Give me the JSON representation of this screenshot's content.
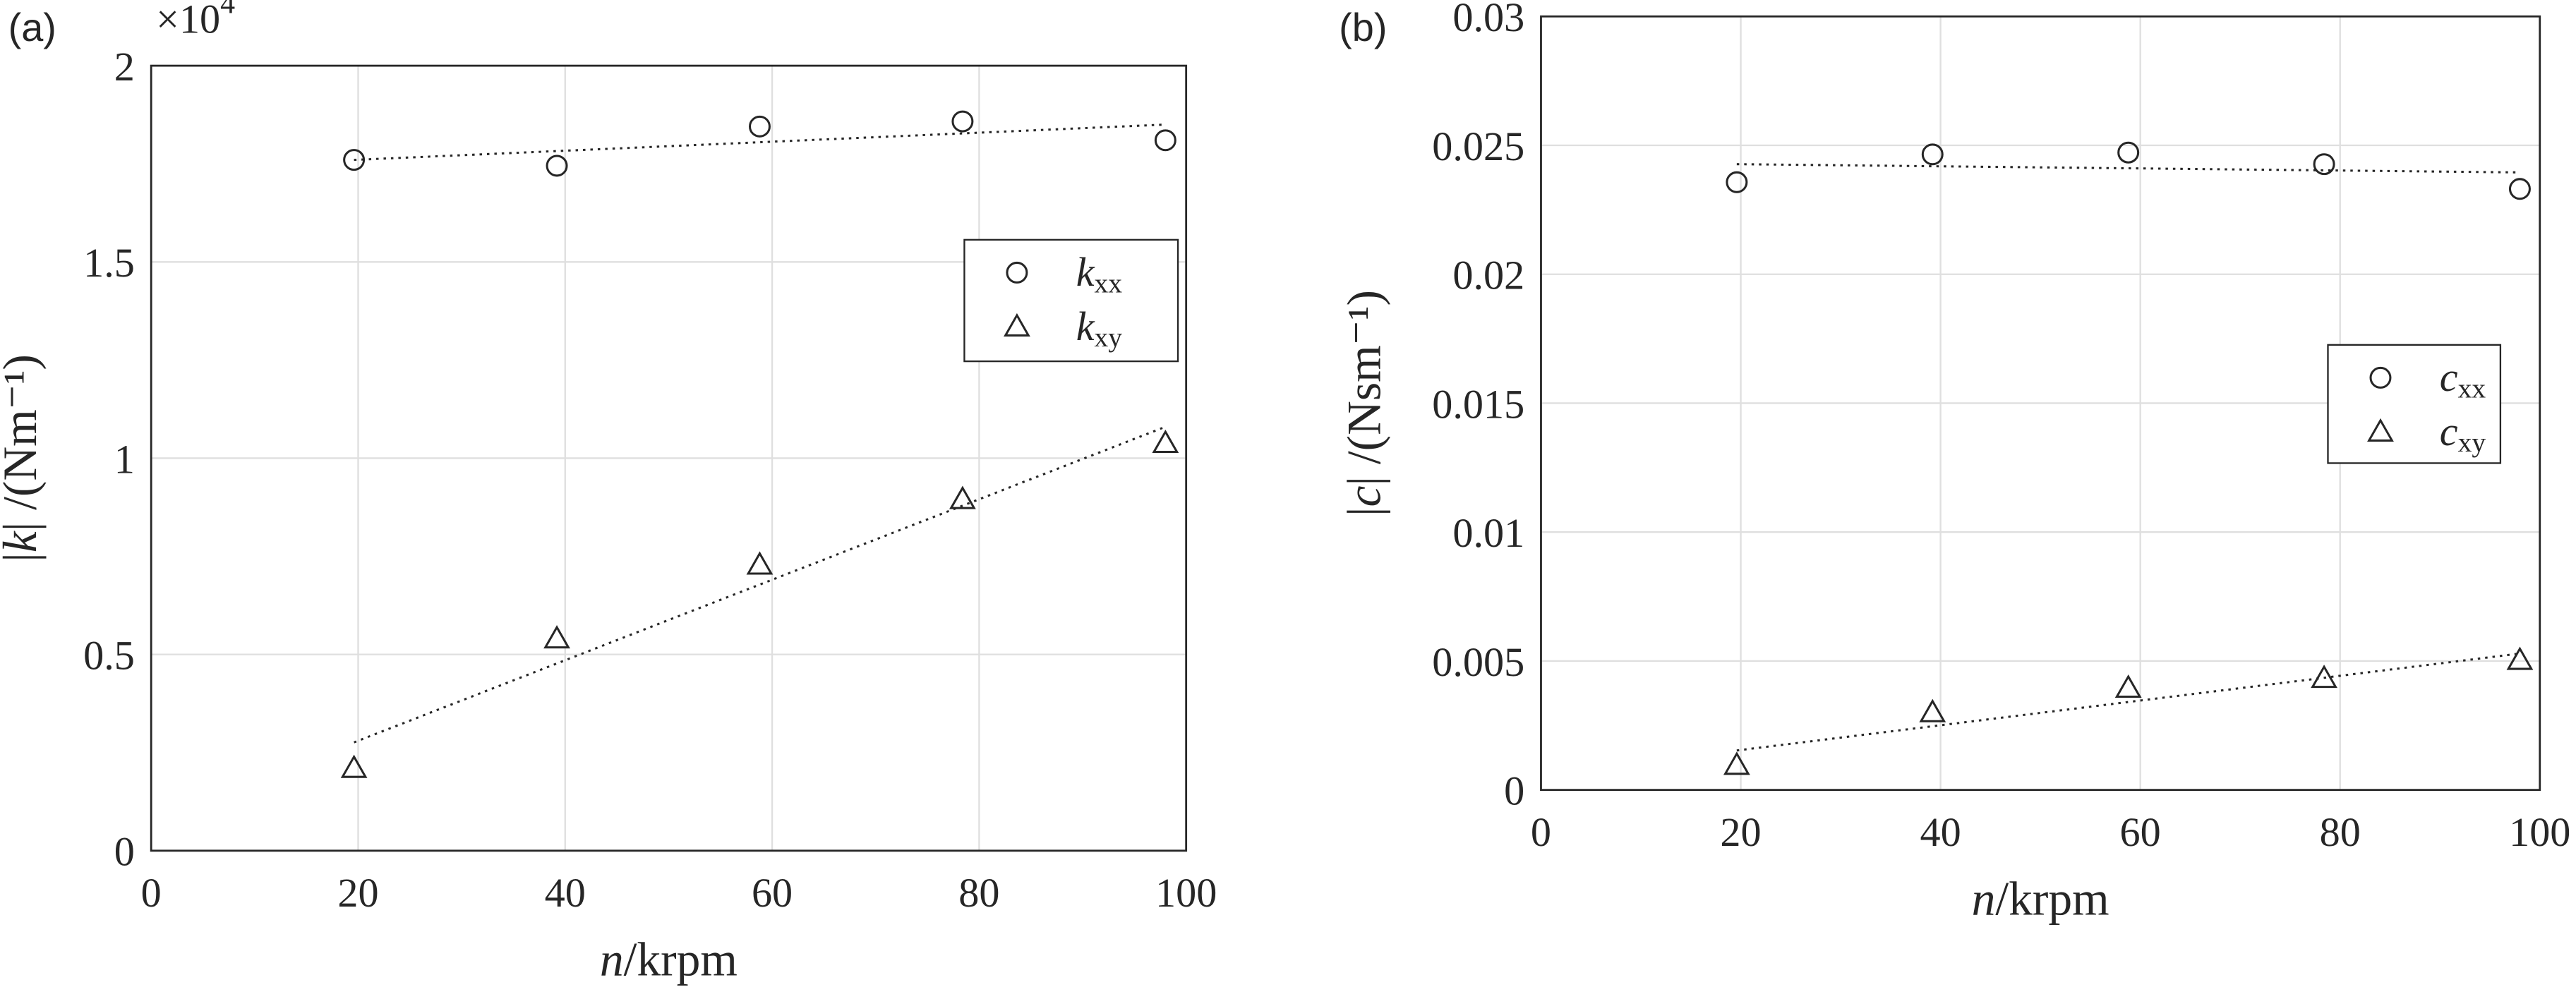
{
  "chart_data": [
    {
      "type": "scatter",
      "panel_label": "(a)",
      "y_multiplier": "×10",
      "y_multiplier_exponent": "4",
      "x_label_var": "n",
      "x_label_unit": "/krpm",
      "y_label_var": "k",
      "y_label_unit": "/(Nm⁻¹)",
      "xlim": [
        0,
        100
      ],
      "xticks": [
        0,
        20,
        40,
        60,
        80,
        100
      ],
      "ylim": [
        0,
        2
      ],
      "yticks": [
        0,
        0.5,
        1,
        1.5,
        2
      ],
      "grid": true,
      "series": [
        {
          "name": "k",
          "subscript": "xx",
          "marker": "circle",
          "color": "#262626",
          "x": [
            19.6,
            39.2,
            58.8,
            78.4,
            98
          ],
          "values": [
            1.76,
            1.745,
            1.845,
            1.858,
            1.81
          ],
          "trend": {
            "x": [
              19.6,
              98
            ],
            "values": [
              1.76,
              1.85
            ]
          }
        },
        {
          "name": "k",
          "subscript": "xy",
          "marker": "triangle",
          "color": "#262626",
          "x": [
            19.6,
            39.2,
            58.8,
            78.4,
            98
          ],
          "values": [
            0.21,
            0.54,
            0.728,
            0.895,
            1.038
          ],
          "trend": {
            "x": [
              19.6,
              98
            ],
            "values": [
              0.276,
              1.08
            ]
          }
        }
      ]
    },
    {
      "type": "scatter",
      "panel_label": "(b)",
      "x_label_var": "n",
      "x_label_unit": "/krpm",
      "y_label_var": "c",
      "y_label_unit": "/(Nsm⁻¹)",
      "xlim": [
        0,
        100
      ],
      "xticks": [
        0,
        20,
        40,
        60,
        80,
        100
      ],
      "ylim": [
        0,
        0.03
      ],
      "yticks": [
        0,
        0.005,
        0.01,
        0.015,
        0.02,
        0.025,
        0.03
      ],
      "grid": true,
      "series": [
        {
          "name": "c",
          "subscript": "xx",
          "marker": "circle",
          "color": "#262626",
          "x": [
            19.6,
            39.2,
            58.8,
            78.4,
            98
          ],
          "values": [
            0.02357,
            0.02465,
            0.02472,
            0.02427,
            0.02331
          ],
          "trend": {
            "x": [
              19.6,
              98
            ],
            "values": [
              0.02427,
              0.02395
            ]
          }
        },
        {
          "name": "c",
          "subscript": "xy",
          "marker": "triangle",
          "color": "#262626",
          "x": [
            19.6,
            39.2,
            58.8,
            78.4,
            98
          ],
          "values": [
            0.00096,
            0.003,
            0.00395,
            0.00433,
            0.00503
          ],
          "trend": {
            "x": [
              19.6,
              98
            ],
            "values": [
              0.00153,
              0.00529
            ]
          }
        }
      ]
    }
  ]
}
